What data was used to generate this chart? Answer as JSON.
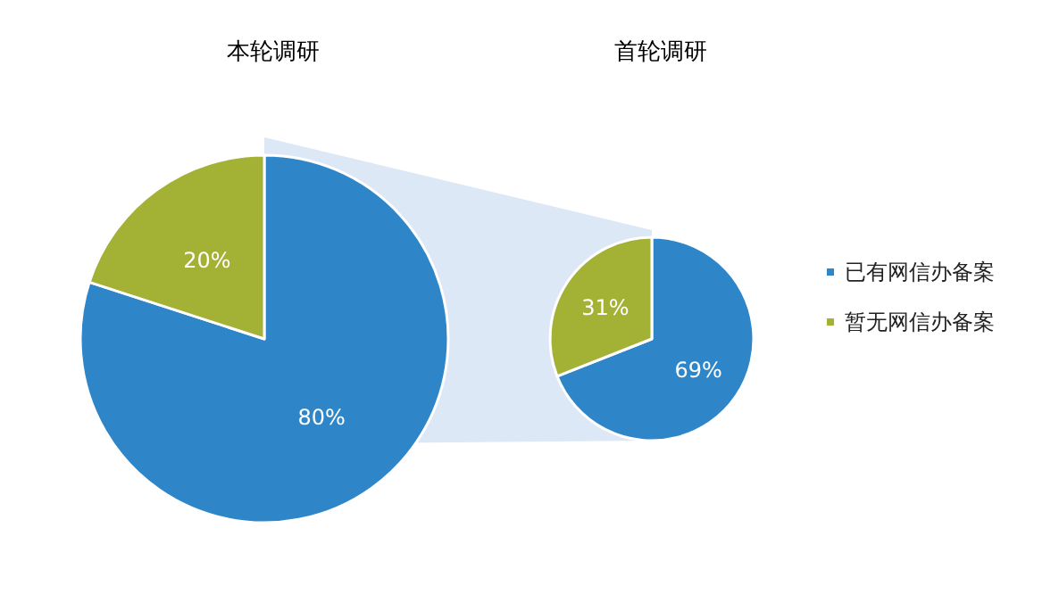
{
  "chart_data": [
    {
      "type": "pie",
      "title": "本轮调研",
      "categories": [
        null,
        null
      ],
      "values": [
        80,
        20
      ],
      "colors": [
        "#2e86c8",
        "#a3b135"
      ],
      "value_labels": [
        "80%",
        "20%"
      ]
    },
    {
      "type": "pie",
      "title": "首轮调研",
      "categories": [
        "已有网信办备案",
        "暂无网信办备案"
      ],
      "values": [
        69,
        31
      ],
      "colors": [
        "#2e86c8",
        "#a3b135"
      ],
      "value_labels": [
        "69%",
        "31%"
      ],
      "legend": "right"
    }
  ]
}
